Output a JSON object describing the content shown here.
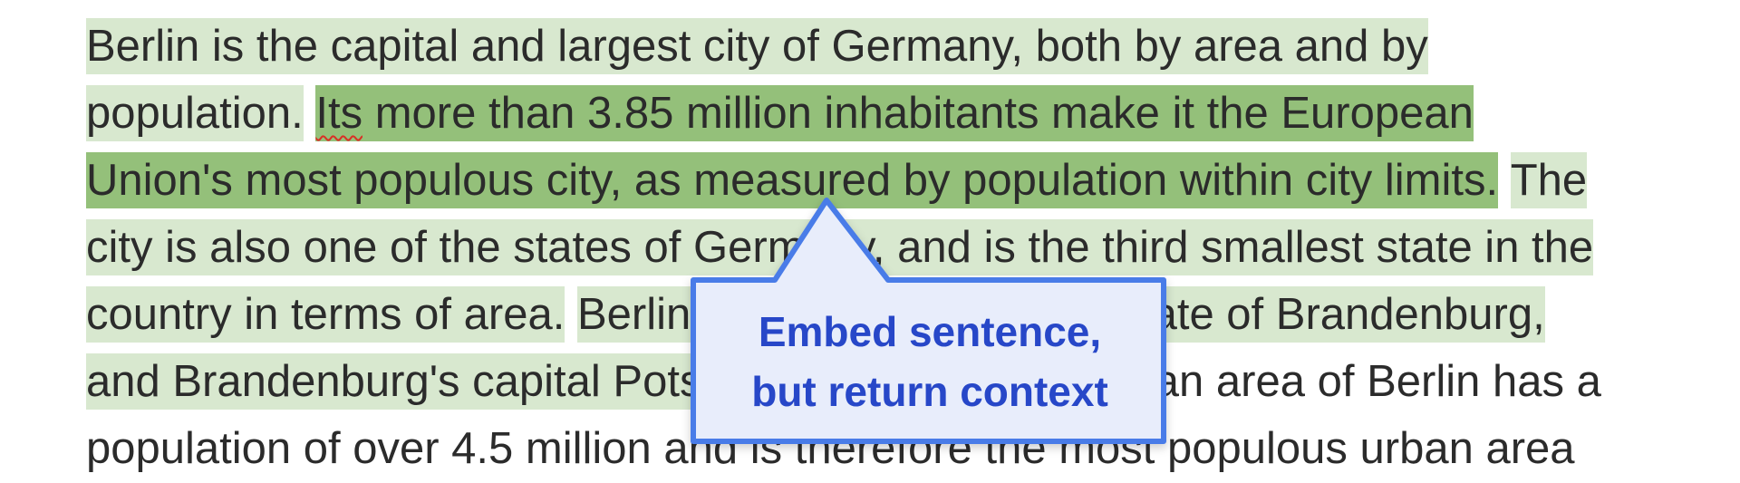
{
  "passage": {
    "lines": [
      [
        {
          "text": "Berlin is the capital and largest city of Germany, both by area and by",
          "style": "ctx"
        }
      ],
      [
        {
          "text": "population.",
          "style": "ctx"
        },
        {
          "text": " ",
          "style": "plain"
        },
        {
          "text": "Its",
          "style": "hit",
          "spellcheck": true
        },
        {
          "text": " more than 3.85 million inhabitants make it the European",
          "style": "hit"
        }
      ],
      [
        {
          "text": "Union's most populous city, as measured by population within city limits.",
          "style": "hit"
        },
        {
          "text": " ",
          "style": "plain"
        },
        {
          "text": "The",
          "style": "ctx"
        }
      ],
      [
        {
          "text": "city is also one of the states of Germany, and is the third smallest state in the",
          "style": "ctx"
        }
      ],
      [
        {
          "text": "country in terms of area.",
          "style": "ctx"
        },
        {
          "text": " ",
          "style": "plain"
        },
        {
          "text": "Berlin is surrounded by the state of Brandenburg,",
          "style": "ctx"
        }
      ],
      [
        {
          "text": "and Brandenburg's capital Potsdam is nearby.",
          "style": "ctx"
        },
        {
          "text": " The urban area of Berlin has a",
          "style": "plain"
        }
      ],
      [
        {
          "text": "population of over 4.5 million and is therefore the most populous urban area",
          "style": "plain"
        }
      ]
    ]
  },
  "callout": {
    "line1": "Embed sentence,",
    "line2": "but return context"
  },
  "colors": {
    "context_highlight": "#d8e8cf",
    "match_highlight": "#94c07a",
    "callout_fill": "#e8edfb",
    "callout_border": "#4a7be8",
    "callout_text": "#2747c8"
  }
}
